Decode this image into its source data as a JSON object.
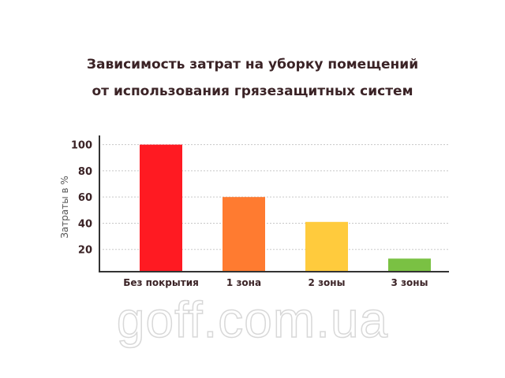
{
  "chart_data": {
    "type": "bar",
    "title_lines": [
      "Зависимость затрат на уборку помещений",
      "от использования грязезащитных систем"
    ],
    "ylabel": "Затраты в %",
    "xlabel": "",
    "categories": [
      "Без покрытия",
      "1 зона",
      "2 зоны",
      "3 зоны"
    ],
    "values": [
      100,
      60,
      41,
      13
    ],
    "colors": [
      "#ff1a22",
      "#ff7b30",
      "#ffcb3d",
      "#7ac143"
    ],
    "yticks": [
      20,
      40,
      60,
      80,
      100
    ],
    "ylim": [
      3,
      107
    ],
    "grid": true
  },
  "watermark": "goff.com.ua"
}
